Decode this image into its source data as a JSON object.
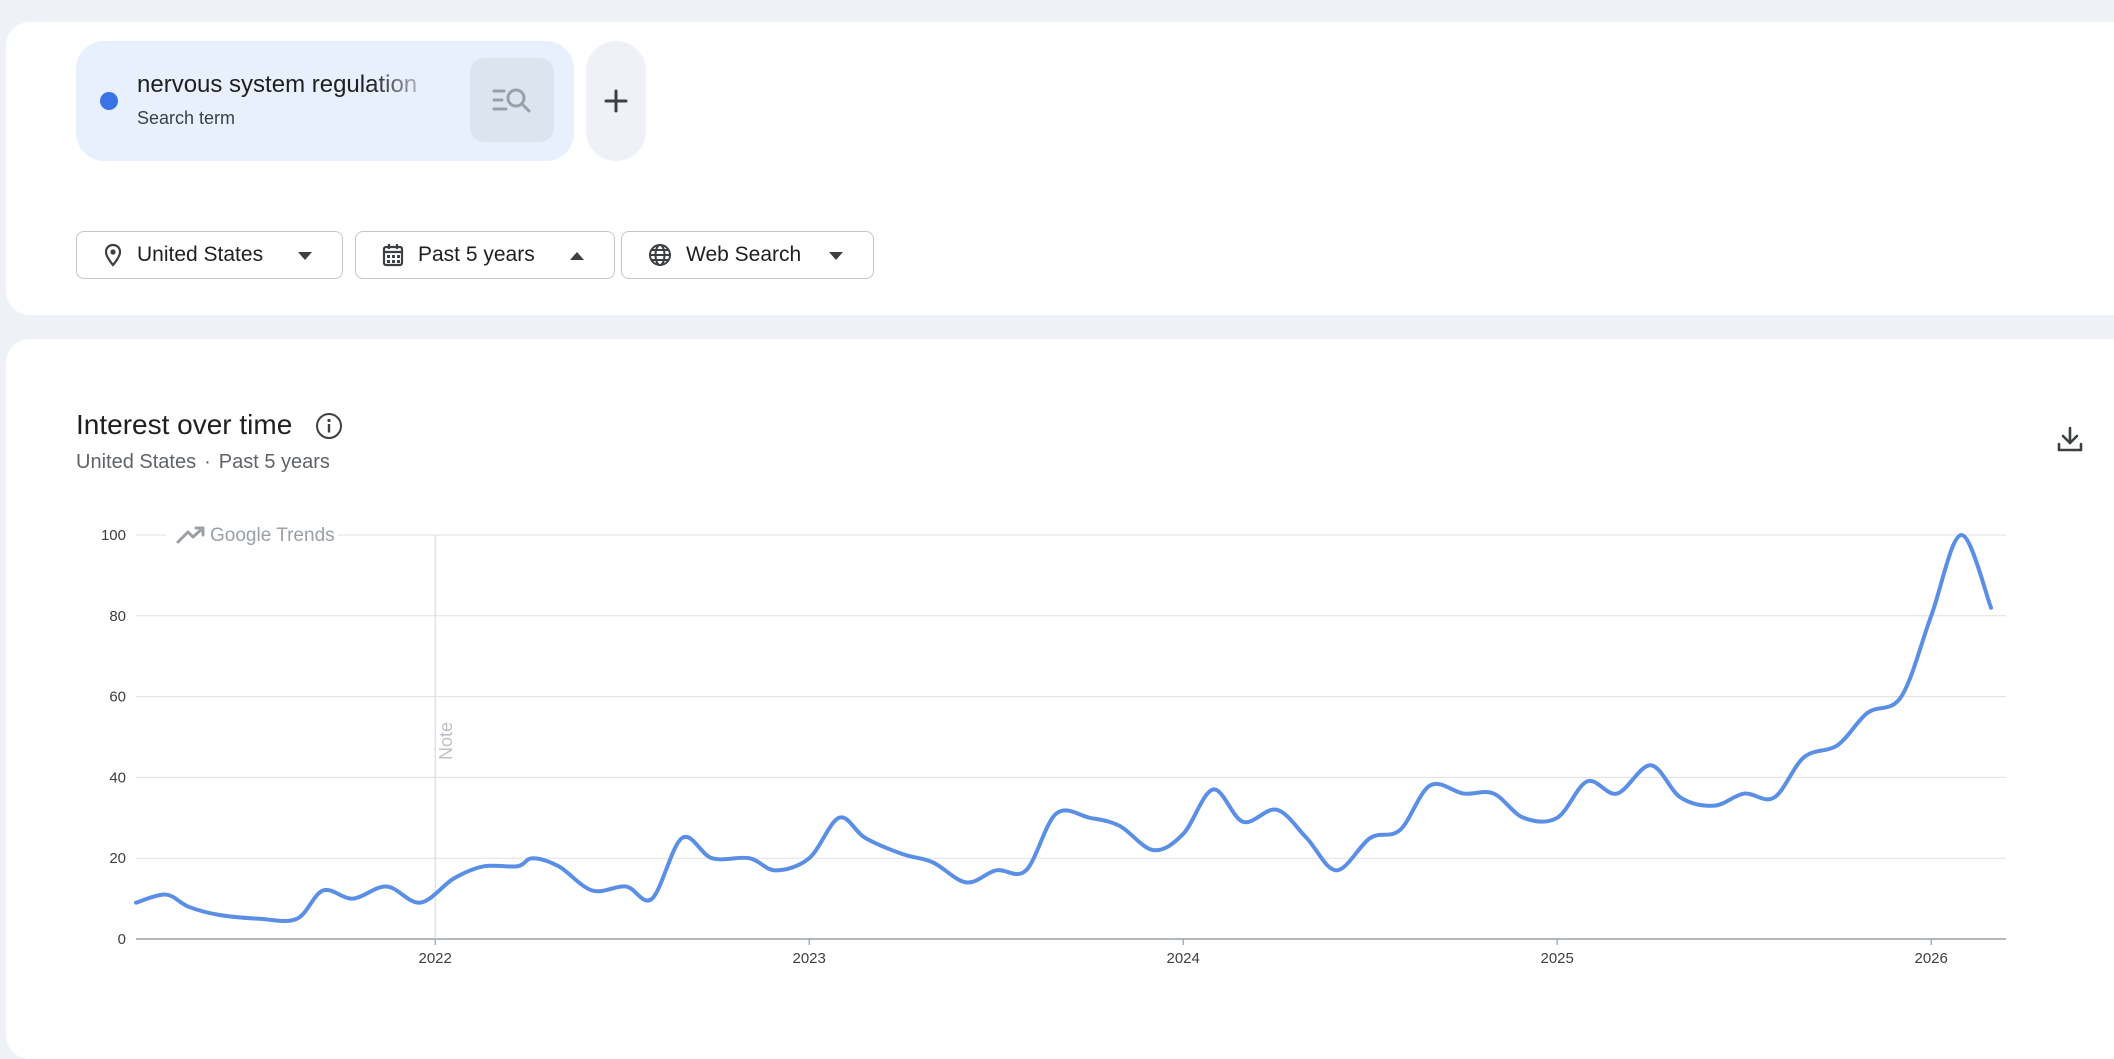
{
  "search": {
    "term": "nervous system regulation",
    "term_type": "Search term",
    "term_color": "#3a73e6",
    "compare_icon": "search-compare-icon",
    "add_icon": "plus-icon"
  },
  "filters": {
    "geo": {
      "label": "United States",
      "icon": "location-pin-icon",
      "caret": "caret-down"
    },
    "time": {
      "label": "Past 5 years",
      "icon": "calendar-icon",
      "caret": "caret-up"
    },
    "property": {
      "label": "Web Search",
      "icon": "globe-icon",
      "caret": "caret-down"
    }
  },
  "panel": {
    "title": "Interest over time",
    "subtitle_geo": "United States",
    "subtitle_sep": "·",
    "subtitle_time": "Past 5 years",
    "download_icon": "download-icon",
    "info_icon": "info-icon"
  },
  "chart_data": {
    "type": "line",
    "title": "",
    "xlabel": "",
    "ylabel": "",
    "ylim": [
      0,
      100
    ],
    "xlim": [
      2021.2,
      2026.2
    ],
    "yticks": [
      0,
      20,
      40,
      60,
      80,
      100
    ],
    "xtick_values": [
      2022,
      2023,
      2024,
      2025,
      2026
    ],
    "xtick_labels": [
      "2022",
      "2023",
      "2024",
      "2025",
      "2026"
    ],
    "grid": true,
    "legend": "none",
    "watermark": "Google Trends",
    "annotations": [
      {
        "x": 2022,
        "text": "Note"
      }
    ],
    "color": "#5b8fe6",
    "series": [
      {
        "values": [
          [
            2021.2,
            9
          ],
          [
            2021.28,
            11
          ],
          [
            2021.34,
            8
          ],
          [
            2021.42,
            6
          ],
          [
            2021.53,
            5
          ],
          [
            2021.63,
            5
          ],
          [
            2021.7,
            12
          ],
          [
            2021.78,
            10
          ],
          [
            2021.87,
            13
          ],
          [
            2021.96,
            9
          ],
          [
            2022.05,
            15
          ],
          [
            2022.13,
            18
          ],
          [
            2022.22,
            18
          ],
          [
            2022.26,
            20
          ],
          [
            2022.33,
            18
          ],
          [
            2022.42,
            12
          ],
          [
            2022.51,
            13
          ],
          [
            2022.58,
            10
          ],
          [
            2022.66,
            25
          ],
          [
            2022.74,
            20
          ],
          [
            2022.84,
            20
          ],
          [
            2022.91,
            17
          ],
          [
            2023.0,
            20
          ],
          [
            2023.08,
            30
          ],
          [
            2023.15,
            25
          ],
          [
            2023.25,
            21
          ],
          [
            2023.33,
            19
          ],
          [
            2023.42,
            14
          ],
          [
            2023.5,
            17
          ],
          [
            2023.58,
            17
          ],
          [
            2023.66,
            31
          ],
          [
            2023.75,
            30
          ],
          [
            2023.83,
            28
          ],
          [
            2023.92,
            22
          ],
          [
            2024.0,
            26
          ],
          [
            2024.08,
            37
          ],
          [
            2024.16,
            29
          ],
          [
            2024.25,
            32
          ],
          [
            2024.33,
            25
          ],
          [
            2024.41,
            17
          ],
          [
            2024.5,
            25
          ],
          [
            2024.58,
            27
          ],
          [
            2024.66,
            38
          ],
          [
            2024.75,
            36
          ],
          [
            2024.83,
            36
          ],
          [
            2024.91,
            30
          ],
          [
            2025.0,
            30
          ],
          [
            2025.08,
            39
          ],
          [
            2025.16,
            36
          ],
          [
            2025.25,
            43
          ],
          [
            2025.33,
            35
          ],
          [
            2025.42,
            33
          ],
          [
            2025.5,
            36
          ],
          [
            2025.58,
            35
          ],
          [
            2025.66,
            45
          ],
          [
            2025.75,
            48
          ],
          [
            2025.83,
            56
          ],
          [
            2025.92,
            60
          ],
          [
            2026.0,
            80
          ],
          [
            2026.08,
            100
          ],
          [
            2026.16,
            82
          ]
        ]
      }
    ]
  }
}
